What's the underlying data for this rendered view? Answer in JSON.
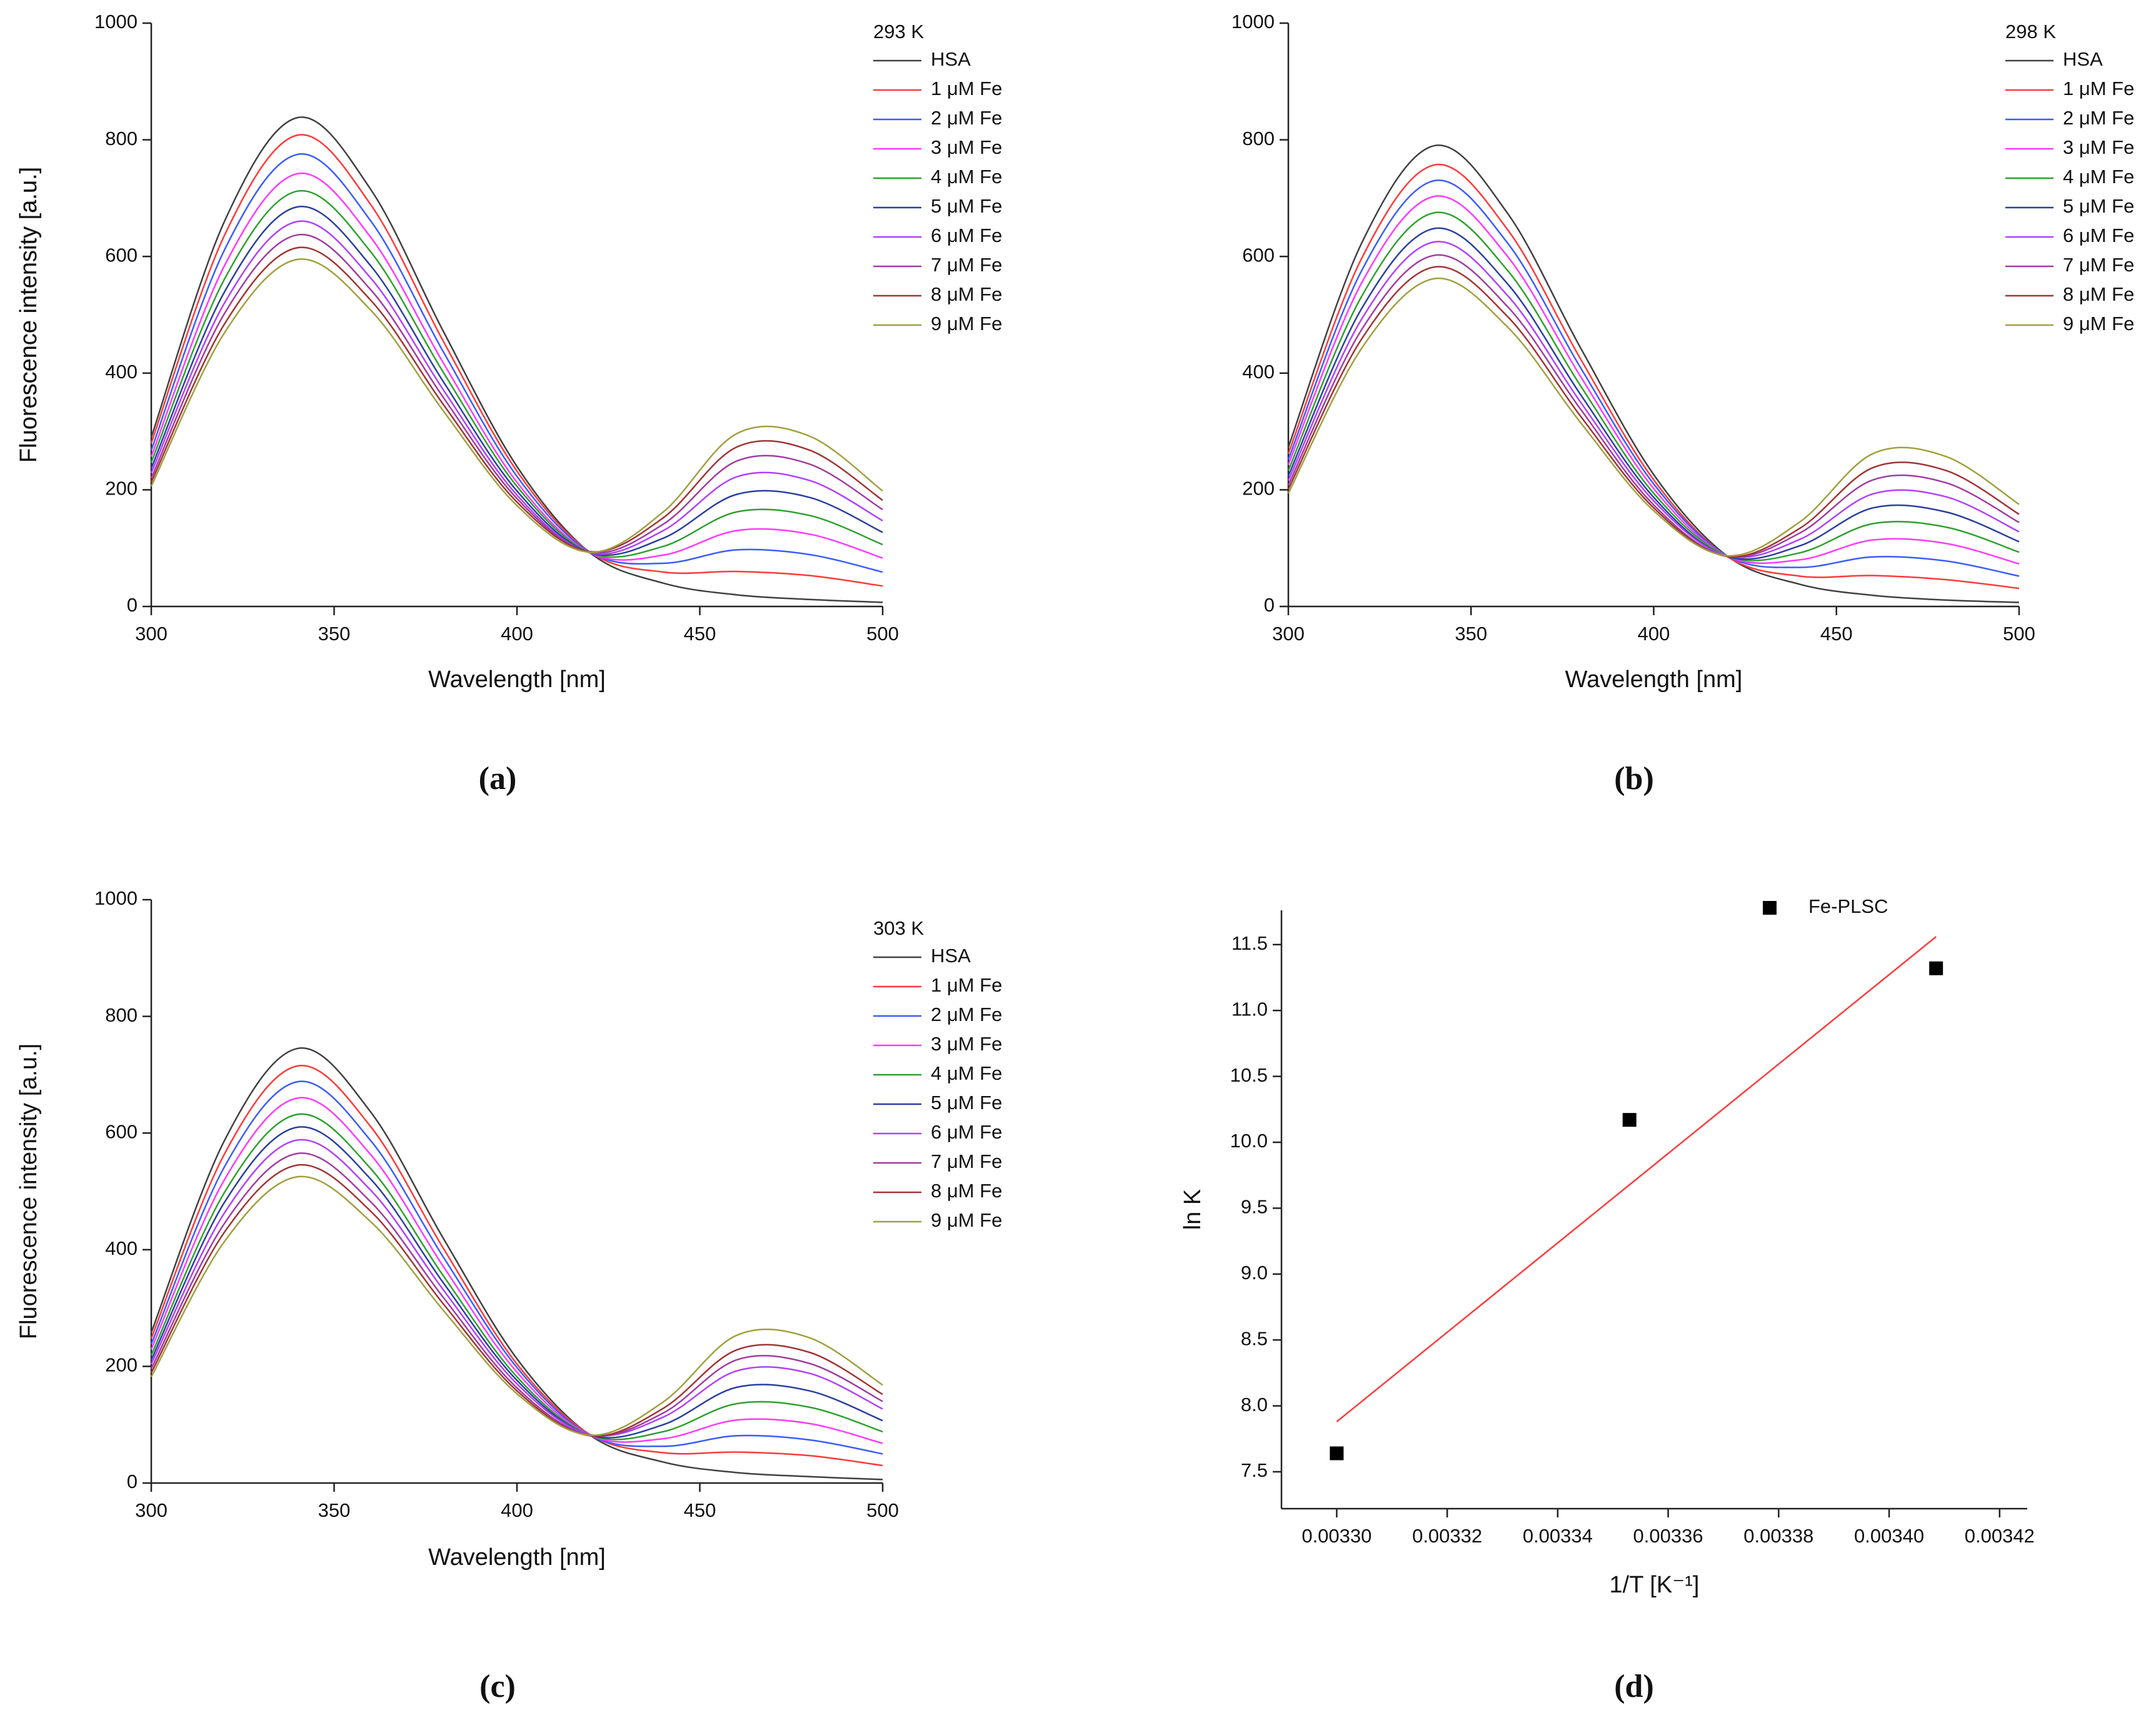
{
  "chart_data": [
    {
      "type": "line",
      "panel_label": "(a)",
      "legend_title": "293 K",
      "xlabel": "Wavelength [nm]",
      "ylabel": "Fluorescence intensity [a.u.]",
      "x": [
        300,
        320,
        340,
        360,
        380,
        400,
        420,
        440,
        460,
        480,
        500
      ],
      "xlim": [
        300,
        500
      ],
      "xticks": [
        300,
        350,
        400,
        450,
        500
      ],
      "ylim": [
        0,
        1000
      ],
      "yticks": [
        0,
        200,
        400,
        600,
        800,
        1000
      ],
      "series": [
        {
          "name": "HSA",
          "color": "#404040",
          "values": [
            290,
            660,
            838,
            715,
            470,
            240,
            92,
            40,
            20,
            12,
            7
          ]
        },
        {
          "name": "1 μM Fe",
          "color": "#ff3a3a",
          "values": [
            280,
            636,
            808,
            689,
            453,
            232,
            93,
            59,
            60,
            53,
            35
          ]
        },
        {
          "name": "2 μM Fe",
          "color": "#3a5cff",
          "values": [
            268,
            611,
            775,
            661,
            435,
            223,
            93,
            74,
            97,
            89,
            59
          ]
        },
        {
          "name": "3 μM Fe",
          "color": "#ff3aff",
          "values": [
            257,
            584,
            742,
            633,
            416,
            213,
            92,
            88,
            130,
            124,
            83
          ]
        },
        {
          "name": "4 μM Fe",
          "color": "#2ea02e",
          "values": [
            247,
            561,
            712,
            608,
            400,
            206,
            92,
            103,
            162,
            156,
            106
          ]
        },
        {
          "name": "5 μM Fe",
          "color": "#2a3f9e",
          "values": [
            237,
            539,
            685,
            584,
            384,
            198,
            92,
            117,
            192,
            187,
            127
          ]
        },
        {
          "name": "6 μM Fe",
          "color": "#b040ff",
          "values": [
            229,
            520,
            660,
            563,
            370,
            191,
            92,
            130,
            222,
            216,
            147
          ]
        },
        {
          "name": "7 μM Fe",
          "color": "#a03ca0",
          "values": [
            220,
            502,
            637,
            543,
            357,
            185,
            93,
            141,
            249,
            244,
            166
          ]
        },
        {
          "name": "8 μM Fe",
          "color": "#a03434",
          "values": [
            213,
            484,
            615,
            525,
            345,
            179,
            94,
            152,
            273,
            268,
            182
          ]
        },
        {
          "name": "9 μM Fe",
          "color": "#a0a040",
          "values": [
            206,
            469,
            595,
            508,
            334,
            173,
            93,
            162,
            296,
            292,
            198
          ]
        }
      ]
    },
    {
      "type": "line",
      "panel_label": "(b)",
      "legend_title": "298 K",
      "xlabel": "Wavelength [nm]",
      "ylabel": "Fluorescence intensity [a.u.]",
      "x": [
        300,
        320,
        340,
        360,
        380,
        400,
        420,
        440,
        460,
        480,
        500
      ],
      "xlim": [
        300,
        500
      ],
      "xticks": [
        300,
        350,
        400,
        450,
        500
      ],
      "ylim": [
        0,
        1000
      ],
      "yticks": [
        0,
        200,
        400,
        600,
        800,
        1000
      ],
      "series": [
        {
          "name": "HSA",
          "color": "#404040",
          "values": [
            273,
            622,
            790,
            674,
            443,
            226,
            87,
            38,
            19,
            11,
            7
          ]
        },
        {
          "name": "1 μM Fe",
          "color": "#ff3a3a",
          "values": [
            262,
            596,
            757,
            646,
            424,
            217,
            86,
            52,
            53,
            46,
            31
          ]
        },
        {
          "name": "2 μM Fe",
          "color": "#3a5cff",
          "values": [
            252,
            575,
            730,
            623,
            409,
            210,
            87,
            67,
            85,
            78,
            52
          ]
        },
        {
          "name": "3 μM Fe",
          "color": "#ff3aff",
          "values": [
            243,
            554,
            703,
            600,
            394,
            202,
            87,
            80,
            114,
            108,
            73
          ]
        },
        {
          "name": "4 μM Fe",
          "color": "#2ea02e",
          "values": [
            233,
            531,
            675,
            576,
            378,
            194,
            87,
            92,
            142,
            136,
            93
          ]
        },
        {
          "name": "5 μM Fe",
          "color": "#2a3f9e",
          "values": [
            224,
            510,
            648,
            553,
            363,
            187,
            86,
            104,
            169,
            162,
            111
          ]
        },
        {
          "name": "6 μM Fe",
          "color": "#b040ff",
          "values": [
            216,
            492,
            625,
            533,
            350,
            181,
            87,
            115,
            193,
            188,
            128
          ]
        },
        {
          "name": "7 μM Fe",
          "color": "#a03ca0",
          "values": [
            208,
            474,
            602,
            514,
            338,
            174,
            86,
            126,
            217,
            212,
            144
          ]
        },
        {
          "name": "8 μM Fe",
          "color": "#a03434",
          "values": [
            201,
            458,
            582,
            497,
            326,
            169,
            86,
            134,
            238,
            233,
            158
          ]
        },
        {
          "name": "9 μM Fe",
          "color": "#a0a040",
          "values": [
            194,
            442,
            562,
            479,
            315,
            164,
            87,
            145,
            262,
            257,
            175
          ]
        }
      ]
    },
    {
      "type": "line",
      "panel_label": "(c)",
      "legend_title": "303 K",
      "xlabel": "Wavelength [nm]",
      "ylabel": "Fluorescence intensity [a.u.]",
      "x": [
        300,
        320,
        340,
        360,
        380,
        400,
        420,
        440,
        460,
        480,
        500
      ],
      "xlim": [
        300,
        500
      ],
      "xticks": [
        300,
        350,
        400,
        450,
        500
      ],
      "ylim": [
        0,
        1000
      ],
      "yticks": [
        0,
        200,
        400,
        600,
        800,
        1000
      ],
      "series": [
        {
          "name": "HSA",
          "color": "#404040",
          "values": [
            258,
            587,
            745,
            636,
            418,
            213,
            82,
            36,
            18,
            11,
            6
          ]
        },
        {
          "name": "1 μM Fe",
          "color": "#ff3a3a",
          "values": [
            248,
            564,
            715,
            611,
            401,
            204,
            83,
            52,
            53,
            47,
            30
          ]
        },
        {
          "name": "2 μM Fe",
          "color": "#3a5cff",
          "values": [
            238,
            542,
            688,
            587,
            386,
            198,
            82,
            63,
            81,
            74,
            50
          ]
        },
        {
          "name": "3 μM Fe",
          "color": "#ff3aff",
          "values": [
            229,
            520,
            660,
            563,
            370,
            190,
            82,
            76,
            108,
            102,
            68
          ]
        },
        {
          "name": "4 μM Fe",
          "color": "#2ea02e",
          "values": [
            219,
            498,
            632,
            539,
            354,
            182,
            82,
            88,
            136,
            130,
            88
          ]
        },
        {
          "name": "5 μM Fe",
          "color": "#2a3f9e",
          "values": [
            211,
            481,
            610,
            521,
            342,
            176,
            82,
            100,
            164,
            158,
            107
          ]
        },
        {
          "name": "6 μM Fe",
          "color": "#b040ff",
          "values": [
            204,
            463,
            588,
            502,
            330,
            170,
            83,
            113,
            192,
            188,
            127
          ]
        },
        {
          "name": "7 μM Fe",
          "color": "#a03ca0",
          "values": [
            196,
            445,
            565,
            482,
            317,
            163,
            82,
            120,
            211,
            205,
            140
          ]
        },
        {
          "name": "8 μM Fe",
          "color": "#a03434",
          "values": [
            189,
            430,
            545,
            466,
            306,
            158,
            81,
            128,
            228,
            224,
            152
          ]
        },
        {
          "name": "9 μM Fe",
          "color": "#a0a040",
          "values": [
            182,
            414,
            525,
            448,
            295,
            153,
            82,
            139,
            253,
            249,
            168
          ]
        }
      ]
    },
    {
      "type": "scatter",
      "panel_label": "(d)",
      "xlabel": "1/T [K⁻¹]",
      "ylabel": "ln K",
      "xlim": [
        0.00329,
        0.003425
      ],
      "xticks": [
        {
          "value": 0.0033,
          "label": "0.00330"
        },
        {
          "value": 0.00332,
          "label": "0.00332"
        },
        {
          "value": 0.00334,
          "label": "0.00334"
        },
        {
          "value": 0.00336,
          "label": "0.00336"
        },
        {
          "value": 0.00338,
          "label": "0.00338"
        },
        {
          "value": 0.0034,
          "label": "0.00340"
        },
        {
          "value": 0.00342,
          "label": "0.00342"
        }
      ],
      "ylim": [
        7.22,
        11.76
      ],
      "yticks": [
        7.5,
        {
          "value": 8,
          "label": "8.0"
        },
        8.5,
        {
          "value": 9,
          "label": "9.0"
        },
        9.5,
        {
          "value": 10,
          "label": "10.0"
        },
        10.5,
        {
          "value": 11,
          "label": "11.0"
        },
        11.5
      ],
      "series": [
        {
          "name": "Fe-PLSC",
          "color": "#000000",
          "x": [
            0.0033,
            0.003353,
            0.0034085
          ],
          "values": [
            7.64,
            10.17,
            11.32
          ]
        }
      ],
      "fit": {
        "color": "#ff3a3a",
        "x": [
          0.0033,
          0.0034085
        ],
        "values": [
          7.88,
          11.56
        ]
      }
    }
  ]
}
